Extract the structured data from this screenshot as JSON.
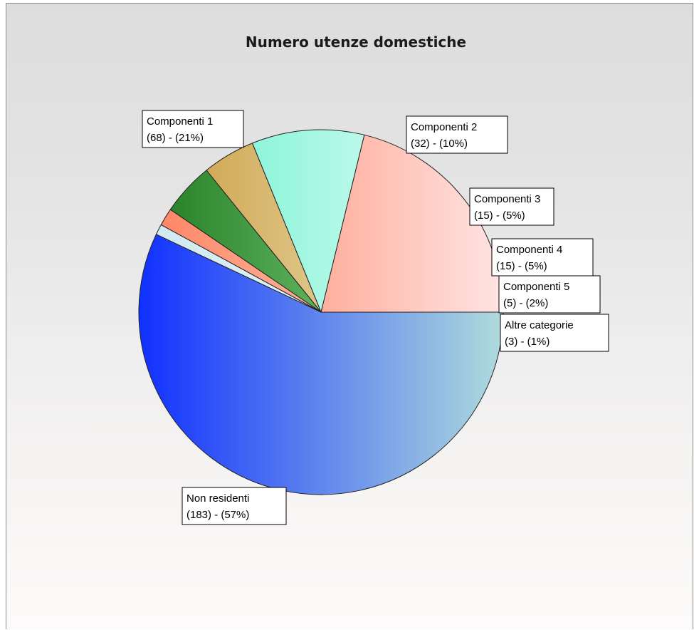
{
  "chart_data": {
    "type": "pie",
    "title": "Numero utenze domestiche",
    "slices": [
      {
        "name": "Componenti 1",
        "value": 68,
        "percent_label": "(68) - (21%)",
        "colors": [
          "#ff7a55",
          "#ffe4e4"
        ]
      },
      {
        "name": "Componenti 2",
        "value": 32,
        "percent_label": "(32) - (10%)",
        "colors": [
          "#60f0c8",
          "#f2ffff"
        ]
      },
      {
        "name": "Componenti 3",
        "value": 15,
        "percent_label": "(15) - (5%)",
        "colors": [
          "#c89a3a",
          "#f6f2d8"
        ]
      },
      {
        "name": "Componenti 4",
        "value": 15,
        "percent_label": "(15) - (5%)",
        "colors": [
          "#1f7a1f",
          "#9ee89e"
        ]
      },
      {
        "name": "Componenti 5",
        "value": 5,
        "percent_label": "(5) - (2%)",
        "colors": [
          "#ff8060",
          "#ffe6d4"
        ]
      },
      {
        "name": "Altre categorie",
        "value": 3,
        "percent_label": "(3) - (1%)",
        "colors": [
          "#cfe8f0",
          "#f5fdff"
        ]
      },
      {
        "name": "Non residenti",
        "value": 183,
        "percent_label": "(183) - (57%)",
        "colors": [
          "#1030ff",
          "#b0dcdc"
        ]
      }
    ]
  }
}
